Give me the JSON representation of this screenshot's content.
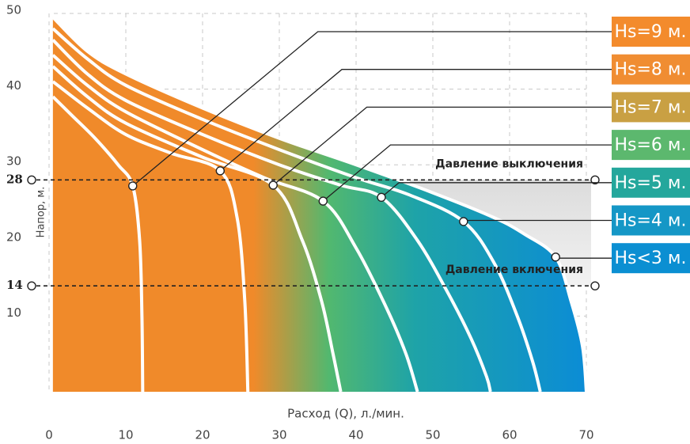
{
  "chart_data": {
    "type": "line",
    "x_label": "Расход (Q), л./мин.",
    "y_label": "Напор, м.",
    "xlim": [
      0,
      70
    ],
    "ylim": [
      0,
      50
    ],
    "xticks": [
      0,
      10,
      20,
      30,
      40,
      50,
      60,
      70
    ],
    "yticks": [
      10,
      20,
      30,
      40,
      50
    ],
    "grid": true,
    "shaded_x": [
      47,
      70
    ],
    "reference_lines": [
      {
        "value": 28,
        "label": "Давление выключения"
      },
      {
        "value": 14,
        "label": "Давление включения"
      }
    ],
    "series": [
      {
        "name": "Hs=9 м.",
        "color": "#f38b2c",
        "x": [
          0.5,
          3,
          6,
          9,
          10.9,
          11.8,
          12.1,
          12.2
        ],
        "values": [
          39,
          36.5,
          33.5,
          30,
          27.2,
          20,
          10,
          0
        ],
        "marker": {
          "x": 10.9,
          "y": 27.2
        }
      },
      {
        "name": "Hs=8 м.",
        "color": "#f08d32",
        "x": [
          0.5,
          5,
          10,
          16,
          22.3,
          24.5,
          25.5,
          25.9
        ],
        "values": [
          41,
          37.5,
          34,
          31.5,
          29.2,
          23,
          12,
          0
        ],
        "marker": {
          "x": 22.3,
          "y": 29.2
        }
      },
      {
        "name": "Hs=7 м.",
        "color": "#c9a043",
        "x": [
          0.5,
          5,
          10,
          20,
          29.2,
          33,
          35.5,
          37,
          38
        ],
        "values": [
          43,
          39,
          35.5,
          31,
          27.3,
          20,
          12,
          5,
          0
        ],
        "marker": {
          "x": 29.2,
          "y": 27.3
        }
      },
      {
        "name": "Hs=6 м.",
        "color": "#5cb86e",
        "x": [
          0.5,
          5,
          10,
          20,
          28,
          35.7,
          40,
          44,
          46.5,
          48
        ],
        "values": [
          44.5,
          40.5,
          37,
          32,
          28.3,
          25.2,
          19,
          11,
          5,
          0
        ],
        "marker": {
          "x": 35.7,
          "y": 25.2
        }
      },
      {
        "name": "Hs=5 м.",
        "color": "#24a79c",
        "x": [
          0.5,
          5,
          10,
          20,
          30,
          38,
          43.3,
          48,
          52,
          55,
          57,
          57.5
        ],
        "values": [
          46.5,
          42,
          38.5,
          34,
          30,
          27.3,
          25.7,
          20,
          13,
          7,
          2,
          0
        ],
        "marker": {
          "x": 43.3,
          "y": 25.7
        }
      },
      {
        "name": "Hs=4 м.",
        "color": "#1597c6",
        "x": [
          0.5,
          5,
          10,
          20,
          30,
          40,
          47,
          54,
          58,
          61,
          63,
          64
        ],
        "values": [
          48,
          44,
          40.5,
          36,
          32,
          28.3,
          26,
          22.5,
          17,
          10,
          4,
          0
        ],
        "marker": {
          "x": 54,
          "y": 22.5
        }
      },
      {
        "name": "Hs<3 м.",
        "color": "#0b8fd2",
        "x": [
          0.5,
          5,
          10,
          20,
          30,
          40,
          50,
          58,
          62,
          66,
          68,
          69.5,
          70
        ],
        "values": [
          49.5,
          45,
          42,
          37.5,
          33.5,
          30,
          26.3,
          23,
          20.8,
          17.8,
          12,
          6,
          0
        ],
        "marker": {
          "x": 66,
          "y": 17.8
        }
      }
    ]
  }
}
